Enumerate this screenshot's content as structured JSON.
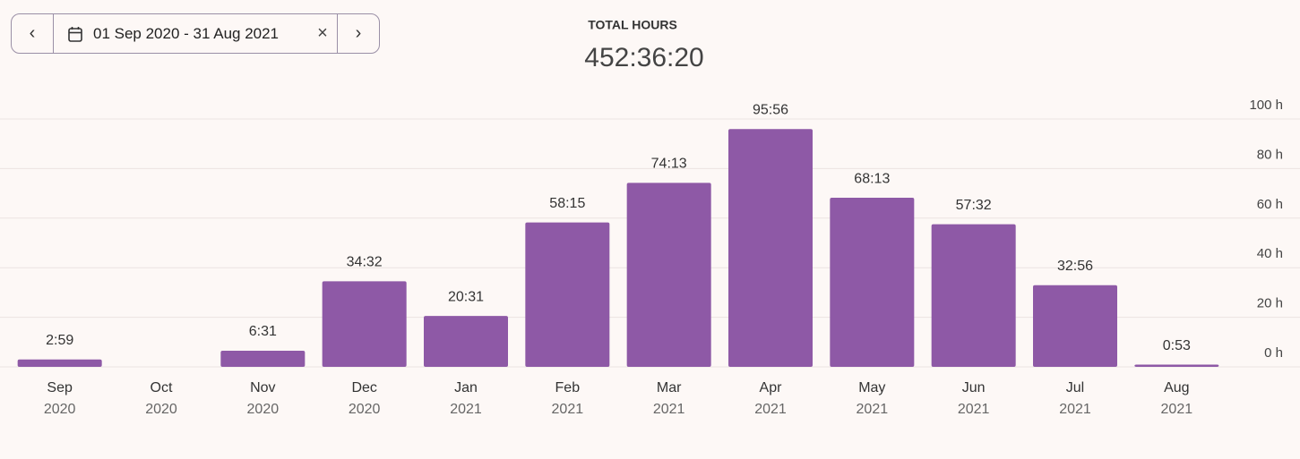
{
  "date_range": {
    "label": "01 Sep 2020 - 31 Aug 2021"
  },
  "summary": {
    "label": "TOTAL HOURS",
    "value": "452:36:20"
  },
  "chart_data": {
    "type": "bar",
    "categories": [
      "Sep",
      "Oct",
      "Nov",
      "Dec",
      "Jan",
      "Feb",
      "Mar",
      "Apr",
      "May",
      "Jun",
      "Jul",
      "Aug"
    ],
    "category_years": [
      "2020",
      "2020",
      "2020",
      "2020",
      "2021",
      "2021",
      "2021",
      "2021",
      "2021",
      "2021",
      "2021",
      "2021"
    ],
    "values": [
      2.9833,
      0,
      6.5167,
      34.5333,
      20.5167,
      58.25,
      74.2167,
      95.9333,
      68.2167,
      57.5333,
      32.9333,
      0.8833
    ],
    "value_labels": [
      "2:59",
      null,
      "6:31",
      "34:32",
      "20:31",
      "58:15",
      "74:13",
      "95:56",
      "68:13",
      "57:32",
      "32:56",
      "0:53"
    ],
    "color": "#8e59a6",
    "ylim": [
      0,
      100
    ],
    "yticks": [
      {
        "value": 0,
        "label": "0 h"
      },
      {
        "value": 20,
        "label": "20 h"
      },
      {
        "value": 40,
        "label": "40 h"
      },
      {
        "value": 60,
        "label": "60 h"
      },
      {
        "value": 80,
        "label": "80 h"
      },
      {
        "value": 100,
        "label": "100 h"
      }
    ],
    "grid": true,
    "y_axis_side": "right"
  }
}
